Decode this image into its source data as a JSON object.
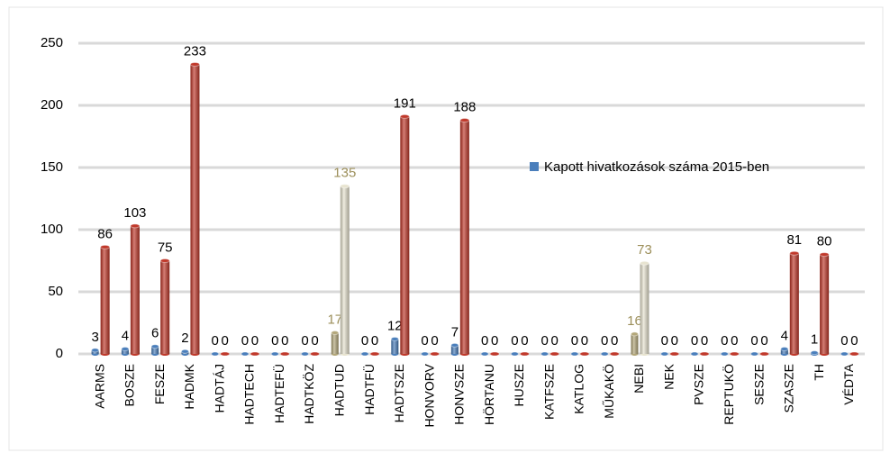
{
  "chart_data": {
    "type": "bar",
    "categories": [
      "AARMS",
      "BOSZE",
      "FESZE",
      "HADMK",
      "HADTÁJ",
      "HADTECH",
      "HADTEFÜ",
      "HADTKÖZ",
      "HADTUD",
      "HADTFÜ",
      "HADTSZE",
      "HONVORV",
      "HONVSZE",
      "HÖRTANU",
      "HUSZE",
      "KATFSZE",
      "KATLOG",
      "MŰKAKÖ",
      "NEBI",
      "NEK",
      "PVSZE",
      "REPTUKÖ",
      "SESZE",
      "SZASZE",
      "TH",
      "VÉDTA"
    ],
    "series": [
      {
        "name": "Kapott hivatkozások száma 2015-ben",
        "color": "#4a7ebb",
        "values": [
          3,
          4,
          6,
          2,
          0,
          0,
          0,
          0,
          17,
          0,
          12,
          0,
          7,
          0,
          0,
          0,
          0,
          0,
          16,
          0,
          0,
          0,
          0,
          4,
          1,
          0
        ],
        "colors": [
          "#4a7ebb",
          "#4a7ebb",
          "#4a7ebb",
          "#4a7ebb",
          "#4a7ebb",
          "#4a7ebb",
          "#4a7ebb",
          "#4a7ebb",
          "#b3a77a",
          "#4a7ebb",
          "#4a7ebb",
          "#4a7ebb",
          "#4a7ebb",
          "#4a7ebb",
          "#4a7ebb",
          "#4a7ebb",
          "#4a7ebb",
          "#4a7ebb",
          "#b3a77a",
          "#4a7ebb",
          "#4a7ebb",
          "#4a7ebb",
          "#4a7ebb",
          "#4a7ebb",
          "#4a7ebb",
          "#4a7ebb"
        ]
      },
      {
        "color": "#c0392b",
        "values": [
          86,
          103,
          75,
          233,
          0,
          0,
          0,
          0,
          135,
          0,
          191,
          0,
          188,
          0,
          0,
          0,
          0,
          0,
          73,
          0,
          0,
          0,
          0,
          81,
          80,
          0
        ],
        "colors": [
          "#c0392b",
          "#c0392b",
          "#c0392b",
          "#c0392b",
          "#c0392b",
          "#c0392b",
          "#c0392b",
          "#c0392b",
          "#e8e4d0",
          "#c0392b",
          "#c0392b",
          "#c0392b",
          "#c0392b",
          "#c0392b",
          "#c0392b",
          "#c0392b",
          "#c0392b",
          "#c0392b",
          "#e8e4d0",
          "#c0392b",
          "#c0392b",
          "#c0392b",
          "#c0392b",
          "#c0392b",
          "#c0392b",
          "#c0392b"
        ]
      }
    ],
    "highlight_label_color": "#9c8f5a",
    "ylim": [
      0,
      250
    ],
    "yticks": [
      0,
      50,
      100,
      150,
      200,
      250
    ],
    "grid": true,
    "legend": "right"
  }
}
